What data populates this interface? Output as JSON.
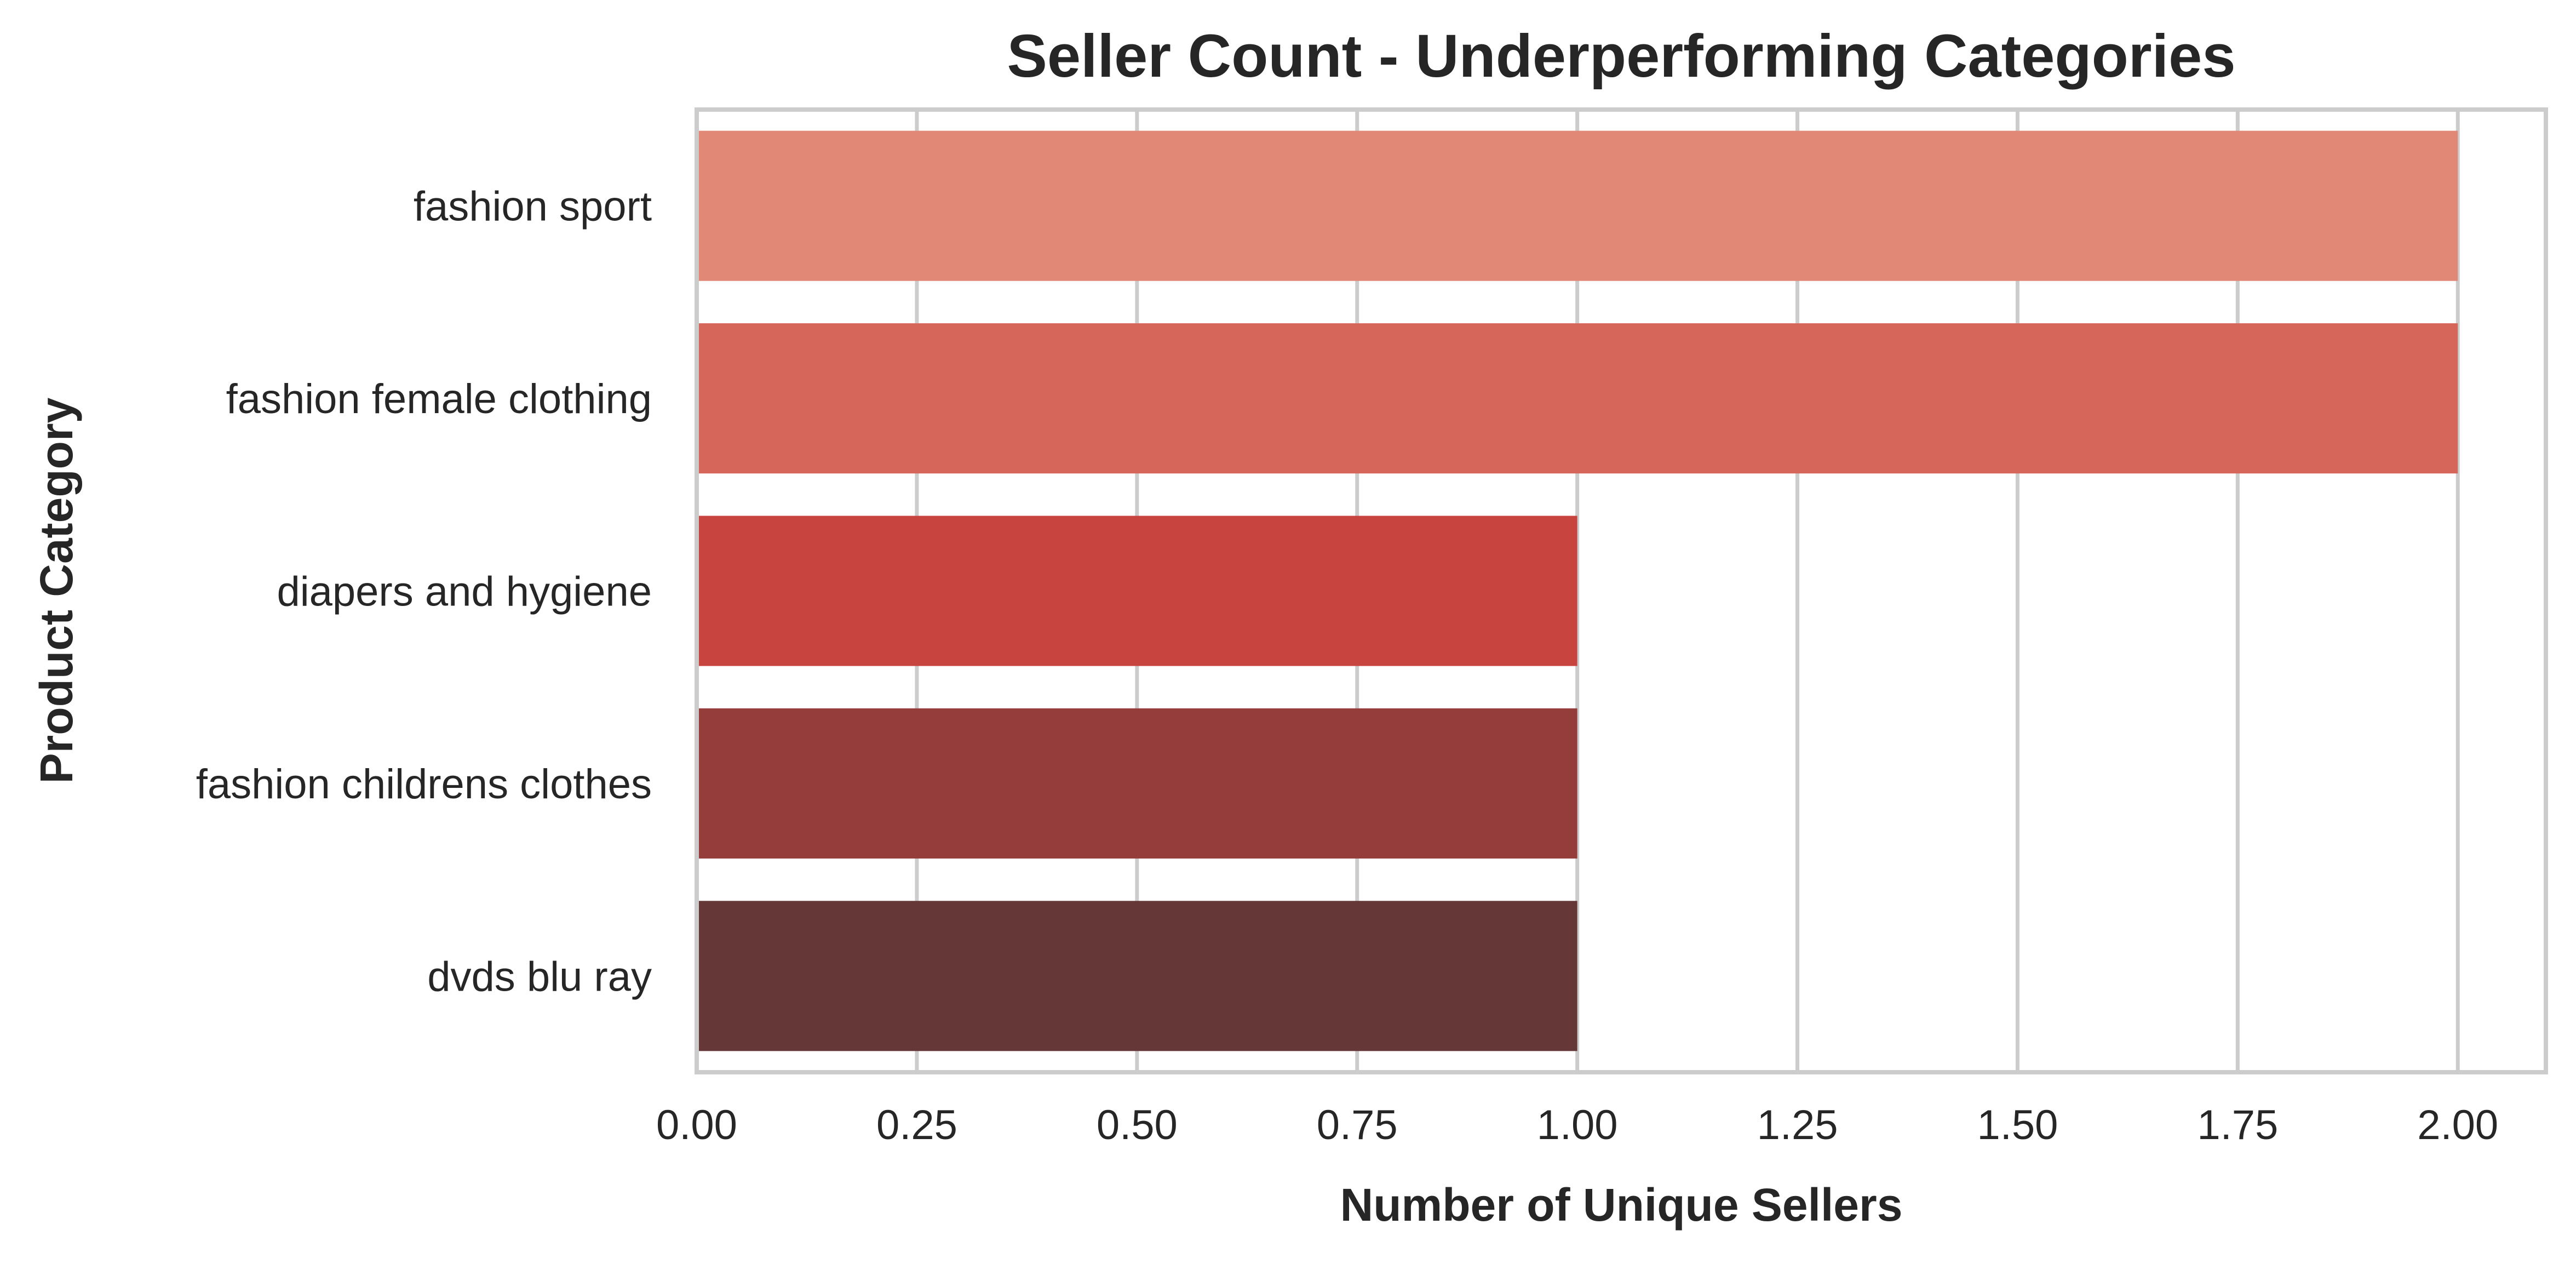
{
  "chart_data": {
    "type": "bar",
    "orientation": "horizontal",
    "title": "Seller Count - Underperforming Categories",
    "xlabel": "Number of Unique Sellers",
    "ylabel": "Product Category",
    "categories": [
      "fashion sport",
      "fashion female clothing",
      "diapers and hygiene",
      "fashion childrens clothes",
      "dvds blu ray"
    ],
    "values": [
      2,
      2,
      1,
      1,
      1
    ],
    "colors": [
      "#e28877",
      "#d6665a",
      "#c8443f",
      "#953d3a",
      "#663737"
    ],
    "xlim": [
      0,
      2.1
    ],
    "xticks": [
      0,
      0.25,
      0.5,
      0.75,
      1.0,
      1.25,
      1.5,
      1.75,
      2.0
    ],
    "xtick_labels": [
      "0.00",
      "0.25",
      "0.50",
      "0.75",
      "1.00",
      "1.25",
      "1.50",
      "1.75",
      "2.00"
    ],
    "grid": true
  }
}
